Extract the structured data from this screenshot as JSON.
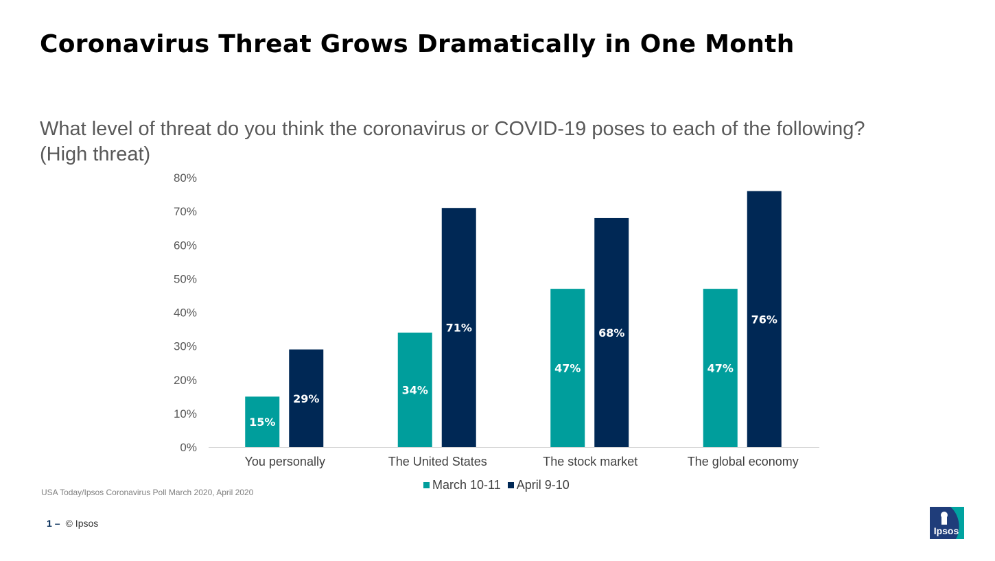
{
  "page": {
    "title": "Coronavirus Threat Grows Dramatically in One Month",
    "question_line1": "What level of threat do you think the coronavirus or COVID-19 poses to each of the following?",
    "question_line2": "(High threat)",
    "source": "USA Today/Ipsos Coronavirus Poll March 2020, April 2020",
    "footer_page": "1",
    "footer_dash": "–",
    "footer_copyright": "© Ipsos",
    "logo_text": "Ipsos"
  },
  "colors": {
    "march": "#009E9C",
    "april": "#002855",
    "logo_bg": "#1F3D7A",
    "logo_accent": "#00A3A0"
  },
  "chart_data": {
    "type": "bar",
    "title": "",
    "xlabel": "",
    "ylabel": "",
    "ylim": [
      0,
      80
    ],
    "yticks": [
      0,
      10,
      20,
      30,
      40,
      50,
      60,
      70,
      80
    ],
    "ytick_labels": [
      "0%",
      "10%",
      "20%",
      "30%",
      "40%",
      "50%",
      "60%",
      "70%",
      "80%"
    ],
    "categories": [
      "You personally",
      "The United States",
      "The stock market",
      "The global economy"
    ],
    "series": [
      {
        "name": "March 10-11",
        "color_key": "march",
        "values": [
          15,
          34,
          47,
          47
        ],
        "labels": [
          "15%",
          "34%",
          "47%",
          "47%"
        ]
      },
      {
        "name": "April 9-10",
        "color_key": "april",
        "values": [
          29,
          71,
          68,
          76
        ],
        "labels": [
          "29%",
          "71%",
          "68%",
          "76%"
        ]
      }
    ],
    "legend_position": "bottom-center",
    "grid": false
  }
}
